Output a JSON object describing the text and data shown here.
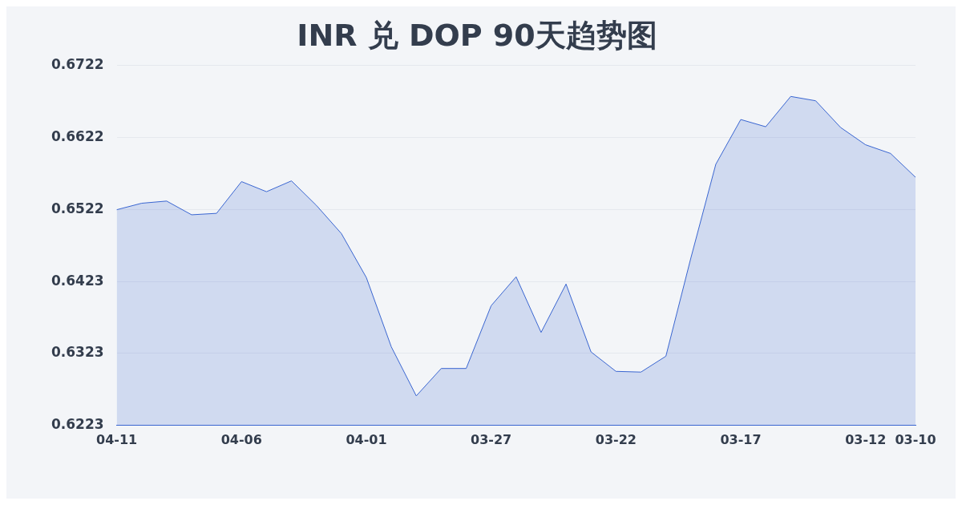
{
  "chart_data": {
    "type": "area",
    "title": "INR 兑 DOP 90天趋势图",
    "categories": [
      "04-11",
      null,
      null,
      null,
      null,
      "04-06",
      null,
      null,
      null,
      null,
      "04-01",
      null,
      null,
      null,
      null,
      "03-27",
      null,
      null,
      null,
      null,
      "03-22",
      null,
      null,
      null,
      null,
      "03-17",
      null,
      null,
      null,
      null,
      "03-12",
      null,
      "03-10"
    ],
    "series": [
      {
        "color": "#3a66d1",
        "values": [
          0.6522,
          0.6531,
          0.6534,
          0.6515,
          0.6517,
          0.6561,
          0.6547,
          0.6562,
          0.6528,
          0.6489,
          0.6428,
          0.6332,
          0.6264,
          0.6302,
          0.6302,
          0.6389,
          0.6429,
          0.6352,
          0.6419,
          0.6325,
          0.6298,
          0.6297,
          0.6319,
          0.6455,
          0.6585,
          0.6647,
          0.6637,
          0.6679,
          0.6673,
          0.6636,
          0.6612,
          0.66,
          0.6567
        ]
      }
    ],
    "ylim": [
      0.6223,
      0.6722
    ],
    "yticks": [
      0.6223,
      {
        "value": 0.63228,
        "label": "0.6323"
      },
      {
        "value": 0.64226,
        "label": "0.6423"
      },
      {
        "value": 0.65224,
        "label": "0.6522"
      },
      {
        "value": 0.66222,
        "label": "0.6622"
      },
      0.6722
    ],
    "grid": "y",
    "legend": false,
    "marker": "none",
    "line_style": "solid"
  }
}
